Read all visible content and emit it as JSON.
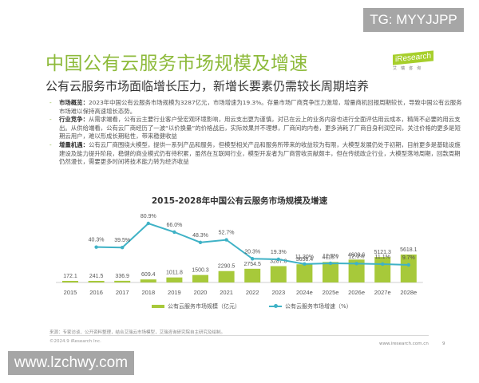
{
  "watermarks": {
    "top": "TG: MYYJJPP",
    "bottom": "www.lzchwy.com"
  },
  "header": {
    "title": "中国公有云服务市场规模及增速",
    "subtitle": "公有云服务市场面临增长压力，新增长要素仍需较长周期培养",
    "logo": {
      "brand": "iResearch",
      "sub": "艾瑞咨询"
    }
  },
  "bullets": [
    {
      "label": "市场概览：",
      "text": "2023年中国公有云服务市场规模为3287亿元，市场增速为19.3%。存量市场厂商竞争压力激增，增量商机回报周期较长，导致中国公有云服务市场难以保持高速增长态势。"
    },
    {
      "label": "行业竞争：",
      "text": "从需求端看，公有云主要行业客户受宏观环境影响，用云支出更为谨慎，对已在云上的业务内容也进行全面评估用云成本，精简不必要的用云支出。从供给端看，公有云厂商经历了一波“以价换量”的价格战后，实际效果并不理想，厂商间的内卷，更多消耗了厂商自身利润空间，关注价格的更多是短期云用户，难以形成长期粘性，带来稳健收益"
    },
    {
      "label": "增量机遇：",
      "text": "公有云厂商围绕大模型，提供一系列产品和服务，但模型相关产品和服务所带来的收益较为有限，大模型发展仍处于初期，目前更多是基础设施建设及能力提升阶段，稳健的商业模式仍有待积累，虽然在互联网行业，模型开发者为厂商营收贡献颇丰，但在传统政企行业，大模型落地周期，回款周期仍然漫长，需要更多时间将技术能力转为经济收益"
    }
  ],
  "chart_data": {
    "type": "bar",
    "title": "2015-2028年中国公有云服务市场规模及增速",
    "categories": [
      "2015",
      "2016",
      "2017",
      "2018",
      "2019",
      "2020",
      "2021",
      "2022",
      "2023",
      "2024e",
      "2025e",
      "2026e",
      "2027e",
      "2028e"
    ],
    "series": [
      {
        "name": "公有云服务市场规模（亿元）",
        "type": "bar",
        "color": "#a7c93a",
        "values": [
          172.1,
          241.5,
          336.9,
          609.4,
          1011.8,
          1500.3,
          2290.5,
          2754.5,
          3287.0,
          3658.4,
          4115.7,
          4609.6,
          5121.3,
          5618.1
        ],
        "labels": [
          "172.1",
          "241.5",
          "336.9",
          "609.4",
          "1011.8",
          "1500.3",
          "2290.5",
          "2754.5",
          "3287.0",
          "3658.4",
          "4115.7",
          "4609.6",
          "5121.3",
          "5618.1"
        ]
      },
      {
        "name": "公有云服务市场增速（%）",
        "type": "line",
        "color": "#3fb2c6",
        "values": [
          null,
          40.3,
          39.5,
          80.9,
          66.0,
          48.3,
          52.7,
          20.3,
          19.3,
          11.3,
          12.5,
          12.0,
          11.1,
          9.7
        ],
        "labels": [
          "",
          "40.3%",
          "39.5%",
          "80.9%",
          "66.0%",
          "48.3%",
          "52.7%",
          "20.3%",
          "19.3%",
          "11.30%",
          "12.5%",
          "12.0%",
          "11.1%",
          "9.7%"
        ]
      }
    ],
    "xlabel": "",
    "ylabel": "",
    "legend_position": "bottom",
    "grid": false
  },
  "footer": {
    "source": "来源：专家访谈、公开资料整理，结合艾瑞云市场模型，艾瑞咨询研究院自主研究及绘制。",
    "copyright": "©2024.9 iResearch Inc.",
    "url": "www.iresearch.com.cn",
    "page": "9"
  }
}
